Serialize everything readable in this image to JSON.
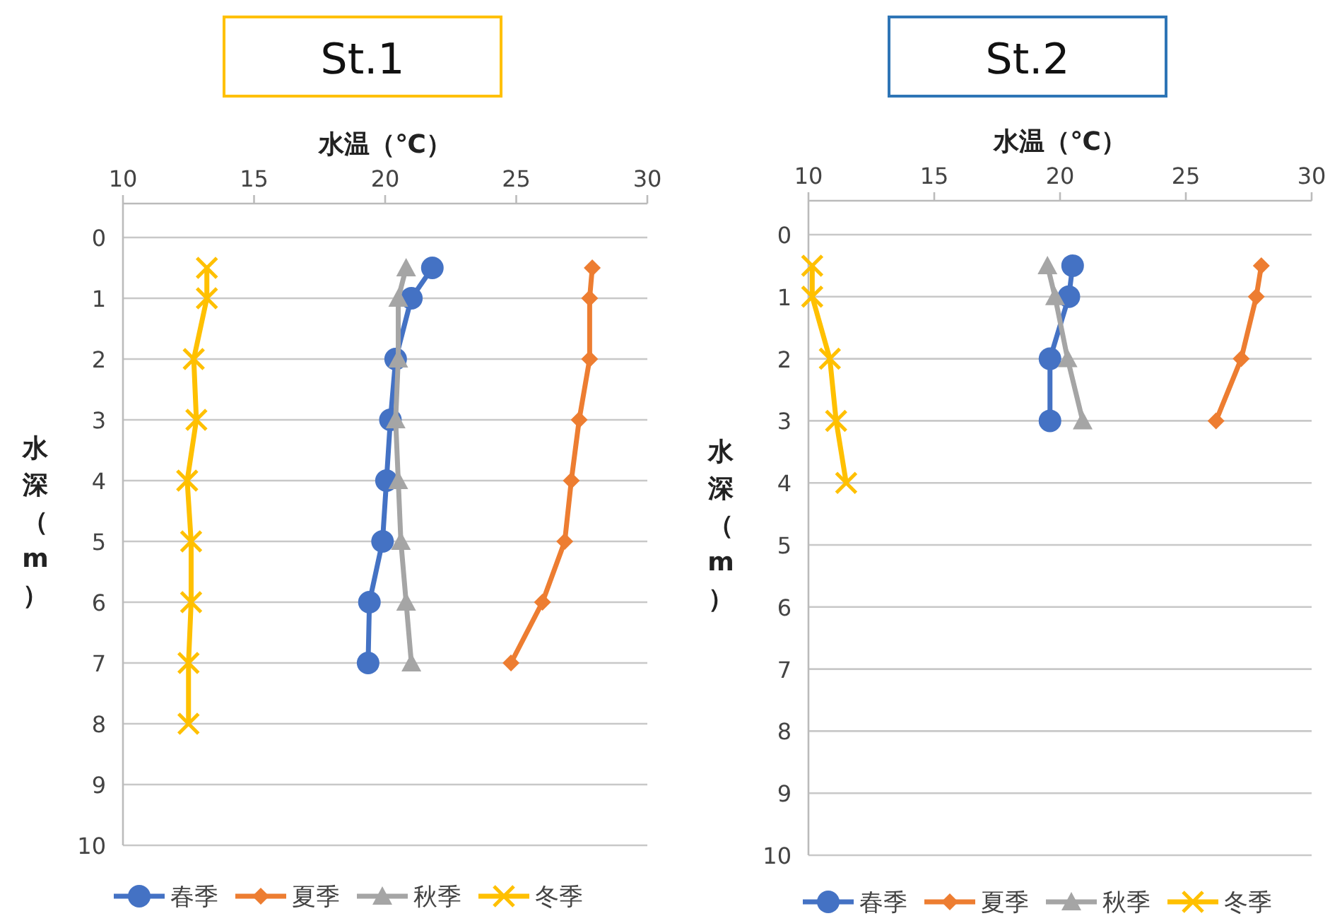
{
  "chart_data": [
    {
      "type": "line",
      "title": "St.1",
      "xlabel": "水温（℃）",
      "ylabel": "水深（m）",
      "xlim": [
        10,
        30
      ],
      "xticks": [
        10,
        15,
        20,
        25,
        30
      ],
      "ylim": [
        10,
        0
      ],
      "yticks": [
        0,
        1,
        2,
        3,
        4,
        5,
        6,
        7,
        8,
        9,
        10
      ],
      "grid": "y",
      "legend": "bottom",
      "line_style": "solid",
      "series": [
        {
          "name": "春季",
          "color": "#4472c4",
          "marker": "circle",
          "x": [
            21.8,
            21.0,
            20.4,
            20.2,
            20.05,
            19.9,
            19.4,
            19.35
          ],
          "values": [
            0.5,
            1,
            2,
            3,
            4,
            5,
            6,
            7
          ]
        },
        {
          "name": "夏季",
          "color": "#ed7d31",
          "marker": "diamond",
          "x": [
            27.9,
            27.8,
            27.8,
            27.4,
            27.1,
            26.85,
            26.0,
            24.8
          ],
          "values": [
            0.5,
            1,
            2,
            3,
            4,
            5,
            6,
            7
          ]
        },
        {
          "name": "秋季",
          "color": "#a5a5a5",
          "marker": "triangle",
          "x": [
            20.8,
            20.5,
            20.5,
            20.4,
            20.5,
            20.6,
            20.8,
            21.0
          ],
          "values": [
            0.5,
            1,
            2,
            3,
            4,
            5,
            6,
            7
          ]
        },
        {
          "name": "冬季",
          "color": "#ffc000",
          "marker": "cross",
          "x": [
            13.2,
            13.2,
            12.7,
            12.8,
            12.45,
            12.6,
            12.6,
            12.5,
            12.5
          ],
          "values": [
            0.5,
            1,
            2,
            3,
            4,
            5,
            6,
            7,
            8
          ]
        }
      ]
    },
    {
      "type": "line",
      "title": "St.2",
      "xlabel": "水温（℃）",
      "ylabel": "水深（m）",
      "xlim": [
        10,
        30
      ],
      "xticks": [
        10,
        15,
        20,
        25,
        30
      ],
      "ylim": [
        10,
        0
      ],
      "yticks": [
        0,
        1,
        2,
        3,
        4,
        5,
        6,
        7,
        8,
        9,
        10
      ],
      "grid": "y",
      "legend": "bottom",
      "line_style": "solid",
      "series": [
        {
          "name": "春季",
          "color": "#4472c4",
          "marker": "circle",
          "x": [
            20.5,
            20.35,
            19.6,
            19.6
          ],
          "values": [
            0.5,
            1,
            2,
            3
          ]
        },
        {
          "name": "夏季",
          "color": "#ed7d31",
          "marker": "diamond",
          "x": [
            28.0,
            27.8,
            27.2,
            26.2
          ],
          "values": [
            0.5,
            1,
            2,
            3
          ]
        },
        {
          "name": "秋季",
          "color": "#a5a5a5",
          "marker": "triangle",
          "x": [
            19.5,
            19.8,
            20.3,
            20.9
          ],
          "values": [
            0.5,
            1,
            2,
            3
          ]
        },
        {
          "name": "冬季",
          "color": "#ffc000",
          "marker": "cross",
          "x": [
            10.15,
            10.15,
            10.85,
            11.1,
            11.5
          ],
          "values": [
            0.5,
            1,
            2,
            3,
            4
          ]
        }
      ]
    }
  ]
}
